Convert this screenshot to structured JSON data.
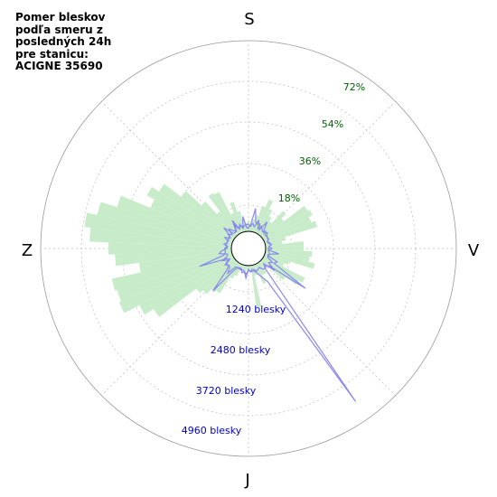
{
  "title": "Pomer bleskov\npodľa smeru z\nposledných 24h\npre stanicu:\nACIGNE 35690",
  "colors": {
    "background": "#ffffff",
    "ring": "#999999",
    "grid": "#bbbbbb",
    "bars": "#c8ecca",
    "line": "#8888ee",
    "percent_labels": "#006400",
    "count_labels": "#0000cc"
  },
  "chart_data": {
    "type": "polar",
    "title": "Pomer bleskov podľa smeru z posledných 24h pre stanicu: ACIGNE 35690",
    "direction_labels": {
      "top": "S",
      "right": "V",
      "bottom": "J",
      "left": "Z"
    },
    "percent_ticks": [
      {
        "value": 18,
        "label": "18%"
      },
      {
        "value": 36,
        "label": "36%"
      },
      {
        "value": 54,
        "label": "54%"
      },
      {
        "value": 72,
        "label": "72%"
      }
    ],
    "count_ticks": [
      {
        "value": 1240,
        "label": "1240 blesky"
      },
      {
        "value": 2480,
        "label": "2480 blesky"
      },
      {
        "value": 3720,
        "label": "3720 blesky"
      },
      {
        "value": 4960,
        "label": "4960 blesky"
      }
    ],
    "bearing_step_deg": 5,
    "percent_series": {
      "color": "#c8ecca",
      "values": [
        0,
        2,
        6,
        8,
        13,
        17,
        3,
        2,
        8,
        16,
        13,
        25,
        26,
        24,
        26,
        10,
        8,
        7,
        2,
        5,
        1,
        2,
        5,
        2,
        1,
        1,
        1,
        1,
        1,
        2,
        6,
        10,
        5,
        5,
        4,
        3,
        3,
        2,
        3,
        2,
        2,
        3,
        1,
        1,
        8,
        13,
        23,
        45,
        50,
        58,
        57,
        58,
        44,
        55,
        58,
        67,
        70,
        65,
        57,
        42,
        46,
        42,
        32,
        22,
        14,
        23,
        22,
        10,
        15,
        10,
        6,
        4,
        5,
        3,
        4,
        2,
        3,
        6,
        13,
        10,
        7,
        6,
        7,
        8,
        12,
        5,
        8,
        3,
        4,
        18,
        18,
        22,
        21,
        24,
        12,
        10,
        22,
        20,
        14,
        4,
        3,
        6,
        2,
        2,
        1,
        2,
        20,
        2,
        1,
        2,
        3,
        1,
        3,
        6,
        8,
        17,
        18,
        21,
        1,
        6,
        8,
        9,
        3,
        0,
        2,
        4,
        1,
        4,
        5,
        6,
        8,
        3,
        2,
        0,
        2,
        1,
        1,
        3,
        1,
        0,
        5,
        2,
        4,
        1,
        0,
        1,
        0
      ]
    },
    "count_series": {
      "color": "#8888ee",
      "values": [
        135,
        200,
        760,
        340,
        290,
        320,
        140,
        500,
        220,
        150,
        240,
        170,
        140,
        150,
        90,
        110,
        200,
        110,
        200,
        95,
        115,
        130,
        110,
        470,
        400,
        1700,
        330,
        240,
        290,
        260,
        150,
        180,
        220,
        160,
        130,
        200,
        120,
        410,
        210,
        260,
        130,
        170,
        160,
        370,
        1240,
        450,
        280,
        370,
        190,
        370,
        185,
        145,
        410,
        320,
        150,
        120,
        250,
        160,
        150,
        290,
        130,
        250,
        140,
        330,
        200,
        120,
        315,
        135,
        230,
        120,
        200,
        220,
        235,
        160,
        270,
        165,
        420,
        150,
        280,
        210,
        150,
        230,
        140,
        150,
        150,
        160,
        90,
        160,
        160,
        130,
        80,
        120,
        440,
        160,
        130,
        130,
        340,
        240,
        550,
        140,
        260,
        5520,
        680,
        470,
        310,
        200,
        190,
        210,
        130,
        280,
        200,
        160,
        190,
        130,
        160,
        170,
        490,
        300,
        280,
        330,
        140,
        220,
        1140,
        270,
        210,
        200,
        220,
        150,
        170,
        180,
        140,
        170,
        130,
        200,
        490,
        140,
        120,
        160,
        500,
        150,
        280,
        135,
        500,
        120,
        95
      ]
    }
  }
}
